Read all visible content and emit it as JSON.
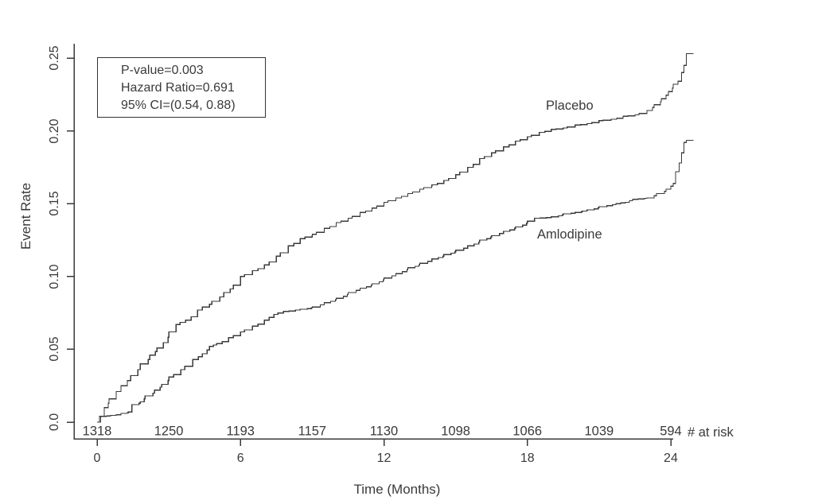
{
  "figure": {
    "annotation_box": {
      "line1": "P-value=0.003",
      "line2": "Hazard Ratio=0.691",
      "line3": "95% CI=(0.54, 0.88)"
    },
    "y_axis": {
      "label": "Event Rate",
      "ticks": [
        "0.0",
        "0.05",
        "0.10",
        "0.15",
        "0.20",
        "0.25"
      ],
      "tick_values": [
        0,
        0.05,
        0.1,
        0.15,
        0.2,
        0.25
      ]
    },
    "x_axis": {
      "label": "Time (Months)",
      "ticks": [
        "0",
        "6",
        "12",
        "18",
        "24"
      ],
      "tick_values": [
        0,
        6,
        12,
        18,
        24
      ]
    },
    "at_risk": {
      "label": "# at risk",
      "times": [
        0,
        3,
        6,
        9,
        12,
        15,
        18,
        21,
        24
      ],
      "counts": [
        "1318",
        "1250",
        "1193",
        "1157",
        "1130",
        "1098",
        "1066",
        "1039",
        "594"
      ]
    },
    "series_labels": {
      "placebo": "Placebo",
      "amlodipine": "Amlodipine"
    }
  },
  "chart_data": {
    "type": "line",
    "subtype": "kaplan-meier-cumulative-event-step",
    "title": "",
    "xlabel": "Time (Months)",
    "ylabel": "Event Rate",
    "xlim": [
      0,
      25
    ],
    "ylim": [
      0,
      0.25
    ],
    "x_ticks": [
      0,
      6,
      12,
      18,
      24
    ],
    "y_ticks": [
      0,
      0.05,
      0.1,
      0.15,
      0.2,
      0.25
    ],
    "grid": false,
    "legend_position": "labels-on-curves",
    "stats": {
      "p_value": "0.003",
      "hazard_ratio": "0.691",
      "ci_95": "(0.54, 0.88)"
    },
    "number_at_risk": {
      "label": "# at risk",
      "times": [
        0,
        3,
        6,
        9,
        12,
        15,
        18,
        21,
        24
      ],
      "counts": [
        1318,
        1250,
        1193,
        1157,
        1130,
        1098,
        1066,
        1039,
        594
      ]
    },
    "series": [
      {
        "name": "Placebo",
        "points": [
          [
            0,
            0
          ],
          [
            0.15,
            0.004
          ],
          [
            0.3,
            0.01
          ],
          [
            0.5,
            0.016
          ],
          [
            0.8,
            0.021
          ],
          [
            1.0,
            0.025
          ],
          [
            1.4,
            0.032
          ],
          [
            1.8,
            0.04
          ],
          [
            2.2,
            0.046
          ],
          [
            2.5,
            0.051
          ],
          [
            3.0,
            0.062
          ],
          [
            3.3,
            0.067
          ],
          [
            3.7,
            0.07
          ],
          [
            4.2,
            0.077
          ],
          [
            4.8,
            0.083
          ],
          [
            5.3,
            0.089
          ],
          [
            5.7,
            0.094
          ],
          [
            6.0,
            0.1
          ],
          [
            6.5,
            0.104
          ],
          [
            7.0,
            0.108
          ],
          [
            7.5,
            0.114
          ],
          [
            8.0,
            0.121
          ],
          [
            8.5,
            0.126
          ],
          [
            9.0,
            0.129
          ],
          [
            9.5,
            0.133
          ],
          [
            10.0,
            0.137
          ],
          [
            10.5,
            0.14
          ],
          [
            11.0,
            0.144
          ],
          [
            11.5,
            0.147
          ],
          [
            12.0,
            0.151
          ],
          [
            12.5,
            0.154
          ],
          [
            13.0,
            0.157
          ],
          [
            13.5,
            0.16
          ],
          [
            14.0,
            0.163
          ],
          [
            14.5,
            0.166
          ],
          [
            15.0,
            0.17
          ],
          [
            15.5,
            0.175
          ],
          [
            16.0,
            0.181
          ],
          [
            16.5,
            0.185
          ],
          [
            17.0,
            0.189
          ],
          [
            17.5,
            0.193
          ],
          [
            18.0,
            0.196
          ],
          [
            18.5,
            0.199
          ],
          [
            19.0,
            0.201
          ],
          [
            19.5,
            0.202
          ],
          [
            20.0,
            0.204
          ],
          [
            20.5,
            0.205
          ],
          [
            21.0,
            0.207
          ],
          [
            21.5,
            0.208
          ],
          [
            22.0,
            0.21
          ],
          [
            22.5,
            0.211
          ],
          [
            23.0,
            0.214
          ],
          [
            23.3,
            0.218
          ],
          [
            23.6,
            0.222
          ],
          [
            23.9,
            0.227
          ],
          [
            24.1,
            0.232
          ],
          [
            24.3,
            0.234
          ],
          [
            24.45,
            0.24
          ],
          [
            24.55,
            0.245
          ],
          [
            24.65,
            0.253
          ],
          [
            24.95,
            0.253
          ]
        ]
      },
      {
        "name": "Amlodipine",
        "points": [
          [
            0,
            0
          ],
          [
            0.1,
            0.004
          ],
          [
            0.8,
            0.005
          ],
          [
            1.0,
            0.006
          ],
          [
            1.3,
            0.007
          ],
          [
            1.45,
            0.012
          ],
          [
            1.8,
            0.014
          ],
          [
            2.0,
            0.018
          ],
          [
            2.4,
            0.022
          ],
          [
            2.7,
            0.026
          ],
          [
            3.0,
            0.031
          ],
          [
            3.5,
            0.036
          ],
          [
            4.0,
            0.043
          ],
          [
            4.4,
            0.047
          ],
          [
            4.7,
            0.052
          ],
          [
            5.0,
            0.054
          ],
          [
            5.5,
            0.058
          ],
          [
            6.0,
            0.062
          ],
          [
            6.5,
            0.066
          ],
          [
            7.0,
            0.07
          ],
          [
            7.4,
            0.074
          ],
          [
            7.8,
            0.076
          ],
          [
            8.3,
            0.077
          ],
          [
            9.0,
            0.079
          ],
          [
            9.5,
            0.082
          ],
          [
            10.0,
            0.085
          ],
          [
            10.5,
            0.089
          ],
          [
            11.0,
            0.092
          ],
          [
            11.5,
            0.095
          ],
          [
            12.0,
            0.099
          ],
          [
            12.5,
            0.102
          ],
          [
            13.0,
            0.106
          ],
          [
            13.5,
            0.109
          ],
          [
            14.0,
            0.112
          ],
          [
            14.5,
            0.115
          ],
          [
            15.0,
            0.118
          ],
          [
            15.5,
            0.121
          ],
          [
            16.0,
            0.125
          ],
          [
            16.5,
            0.128
          ],
          [
            17.0,
            0.131
          ],
          [
            17.5,
            0.134
          ],
          [
            18.0,
            0.138
          ],
          [
            18.3,
            0.14
          ],
          [
            19.0,
            0.141
          ],
          [
            19.5,
            0.143
          ],
          [
            20.0,
            0.144
          ],
          [
            20.3,
            0.145
          ],
          [
            21.0,
            0.148
          ],
          [
            21.7,
            0.15
          ],
          [
            22.1,
            0.151
          ],
          [
            22.4,
            0.153
          ],
          [
            23.0,
            0.154
          ],
          [
            23.4,
            0.157
          ],
          [
            23.8,
            0.16
          ],
          [
            24.0,
            0.162
          ],
          [
            24.1,
            0.164
          ],
          [
            24.2,
            0.172
          ],
          [
            24.35,
            0.178
          ],
          [
            24.45,
            0.185
          ],
          [
            24.55,
            0.192
          ],
          [
            24.65,
            0.1935
          ],
          [
            24.95,
            0.1935
          ]
        ]
      }
    ]
  },
  "colors": {
    "line": "#3a3a3a",
    "text": "#3a3a3a",
    "background": "#ffffff"
  }
}
